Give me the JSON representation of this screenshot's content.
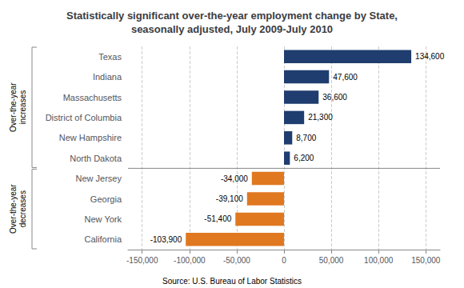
{
  "chart_data": {
    "type": "bar",
    "orientation": "horizontal",
    "title": "Statistically significant over-the-year employment change by State,\nseasonally adjusted, July 2009-July 2010",
    "categories": [
      "Texas",
      "Indiana",
      "Massachusetts",
      "District of Columbia",
      "New Hampshire",
      "North Dakota",
      "New Jersey",
      "Georgia",
      "New York",
      "California"
    ],
    "values": [
      134600,
      47600,
      36600,
      21300,
      8700,
      6200,
      -34000,
      -39100,
      -51400,
      -103900
    ],
    "value_labels": [
      "134,600",
      "47,600",
      "36,600",
      "21,300",
      "8,700",
      "6,200",
      "-34,000",
      "-39,100",
      "-51,400",
      "-103,900"
    ],
    "colors": [
      "#1F3D6E",
      "#1F3D6E",
      "#1F3D6E",
      "#1F3D6E",
      "#1F3D6E",
      "#1F3D6E",
      "#E07820",
      "#E07820",
      "#E07820",
      "#E07820"
    ],
    "xlim": [
      -165000,
      165000
    ],
    "xticks": [
      {
        "value": -150000,
        "label": "-150,000"
      },
      {
        "value": -100000,
        "label": "-100,000"
      },
      {
        "value": -50000,
        "label": "-50,000"
      },
      0,
      {
        "value": 50000,
        "label": "50,000"
      },
      {
        "value": 100000,
        "label": "100,000"
      },
      {
        "value": 150000,
        "label": "150,000"
      }
    ],
    "grid": true,
    "data_labels": true,
    "annotations": [
      {
        "text": "Over-the-year\nincreases",
        "categories": [
          "Texas",
          "North Dakota"
        ]
      },
      {
        "text": "Over-the-year\ndecreases",
        "categories": [
          "New Jersey",
          "California"
        ]
      },
      {
        "text": "Source: U.S. Bureau of Labor Statistics"
      }
    ]
  }
}
